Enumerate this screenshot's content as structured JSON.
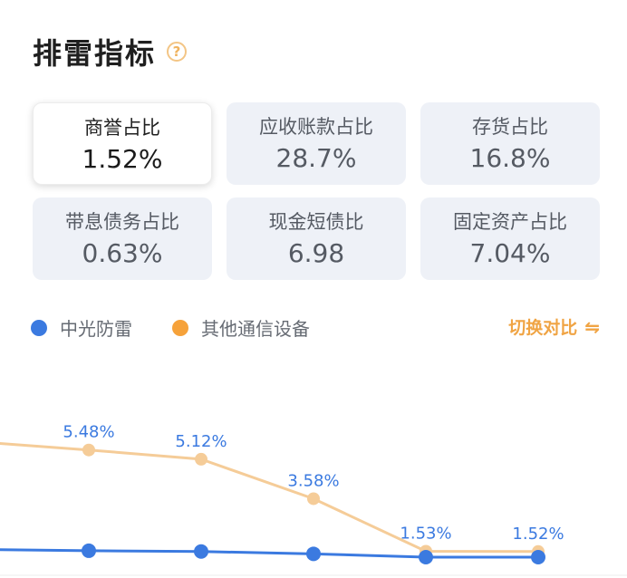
{
  "section": {
    "title": "排雷指标",
    "help_icon": "question-circle-icon"
  },
  "metrics": [
    {
      "label": "商誉占比",
      "value": "1.52%",
      "active": true
    },
    {
      "label": "应收账款占比",
      "value": "28.7%",
      "active": false
    },
    {
      "label": "存货占比",
      "value": "16.8%",
      "active": false
    },
    {
      "label": "带息债务占比",
      "value": "0.63%",
      "active": false
    },
    {
      "label": "现金短债比",
      "value": "6.98",
      "active": false
    },
    {
      "label": "固定资产占比",
      "value": "7.04%",
      "active": false
    }
  ],
  "legend": {
    "series_a": "中光防雷",
    "series_b": "其他通信设备",
    "switch_label": "切换对比",
    "switch_icon": "switch-icon"
  },
  "colors": {
    "series_a": "#3b7ae0",
    "series_b": "#f5cc98",
    "accent": "#f0a444"
  },
  "chart_data": {
    "type": "line",
    "series": [
      {
        "name": "中光防雷",
        "values": [
          1.6,
          1.55,
          1.52,
          1.43,
          1.3,
          1.3
        ]
      },
      {
        "name": "其他通信设备",
        "values": [
          5.8,
          5.48,
          5.12,
          3.58,
          1.53,
          1.52
        ]
      }
    ],
    "point_labels": [
      "5.48%",
      "5.12%",
      "3.58%",
      "1.53%",
      "1.52%"
    ]
  }
}
